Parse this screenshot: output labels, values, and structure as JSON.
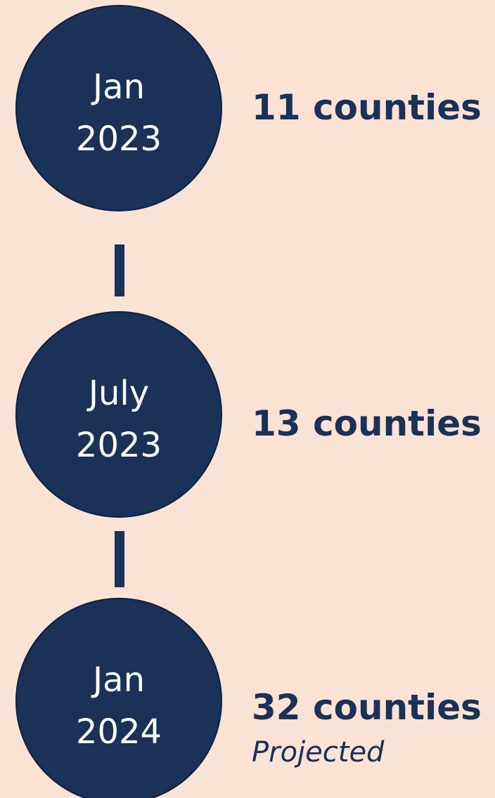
{
  "nodes": [
    {
      "date_line1": "Jan",
      "date_line2": "2023",
      "label": "11 counties"
    },
    {
      "date_line1": "July",
      "date_line2": "2023",
      "label": "13 counties"
    },
    {
      "date_line1": "Jan",
      "date_line2": "2024",
      "label": "32 counties",
      "note": "Projected"
    }
  ]
}
